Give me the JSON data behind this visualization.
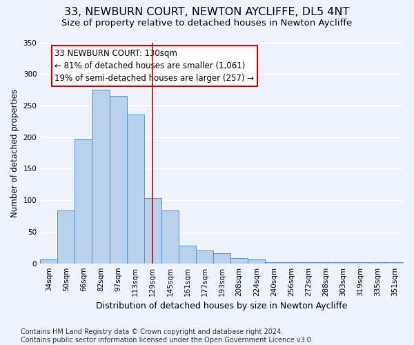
{
  "title": "33, NEWBURN COURT, NEWTON AYCLIFFE, DL5 4NT",
  "subtitle": "Size of property relative to detached houses in Newton Aycliffe",
  "xlabel": "Distribution of detached houses by size in Newton Aycliffe",
  "ylabel": "Number of detached properties",
  "bar_labels": [
    "34sqm",
    "50sqm",
    "66sqm",
    "82sqm",
    "97sqm",
    "113sqm",
    "129sqm",
    "145sqm",
    "161sqm",
    "177sqm",
    "193sqm",
    "208sqm",
    "224sqm",
    "240sqm",
    "256sqm",
    "272sqm",
    "288sqm",
    "303sqm",
    "319sqm",
    "335sqm",
    "351sqm"
  ],
  "bar_values": [
    6,
    84,
    196,
    275,
    265,
    236,
    104,
    84,
    28,
    20,
    16,
    8,
    6,
    2,
    2,
    2,
    2,
    2,
    2,
    2,
    2
  ],
  "bar_color": "#b8d0ea",
  "bar_edge_color": "#5590c8",
  "vline_x": 6,
  "vline_color": "#cc0000",
  "annotation_title": "33 NEWBURN COURT: 130sqm",
  "annotation_line1": "← 81% of detached houses are smaller (1,061)",
  "annotation_line2": "19% of semi-detached houses are larger (257) →",
  "annotation_box_color": "#ffffff",
  "annotation_box_edge": "#cc0000",
  "ylim": [
    0,
    350
  ],
  "yticks": [
    0,
    50,
    100,
    150,
    200,
    250,
    300,
    350
  ],
  "footer1": "Contains HM Land Registry data © Crown copyright and database right 2024.",
  "footer2": "Contains public sector information licensed under the Open Government Licence v3.0.",
  "bg_color": "#eef2fb",
  "grid_color": "#ffffff",
  "title_fontsize": 11.5,
  "subtitle_fontsize": 9.5,
  "xlabel_fontsize": 9,
  "ylabel_fontsize": 8.5,
  "tick_fontsize": 7.5,
  "annotation_fontsize": 8.5,
  "footer_fontsize": 7
}
